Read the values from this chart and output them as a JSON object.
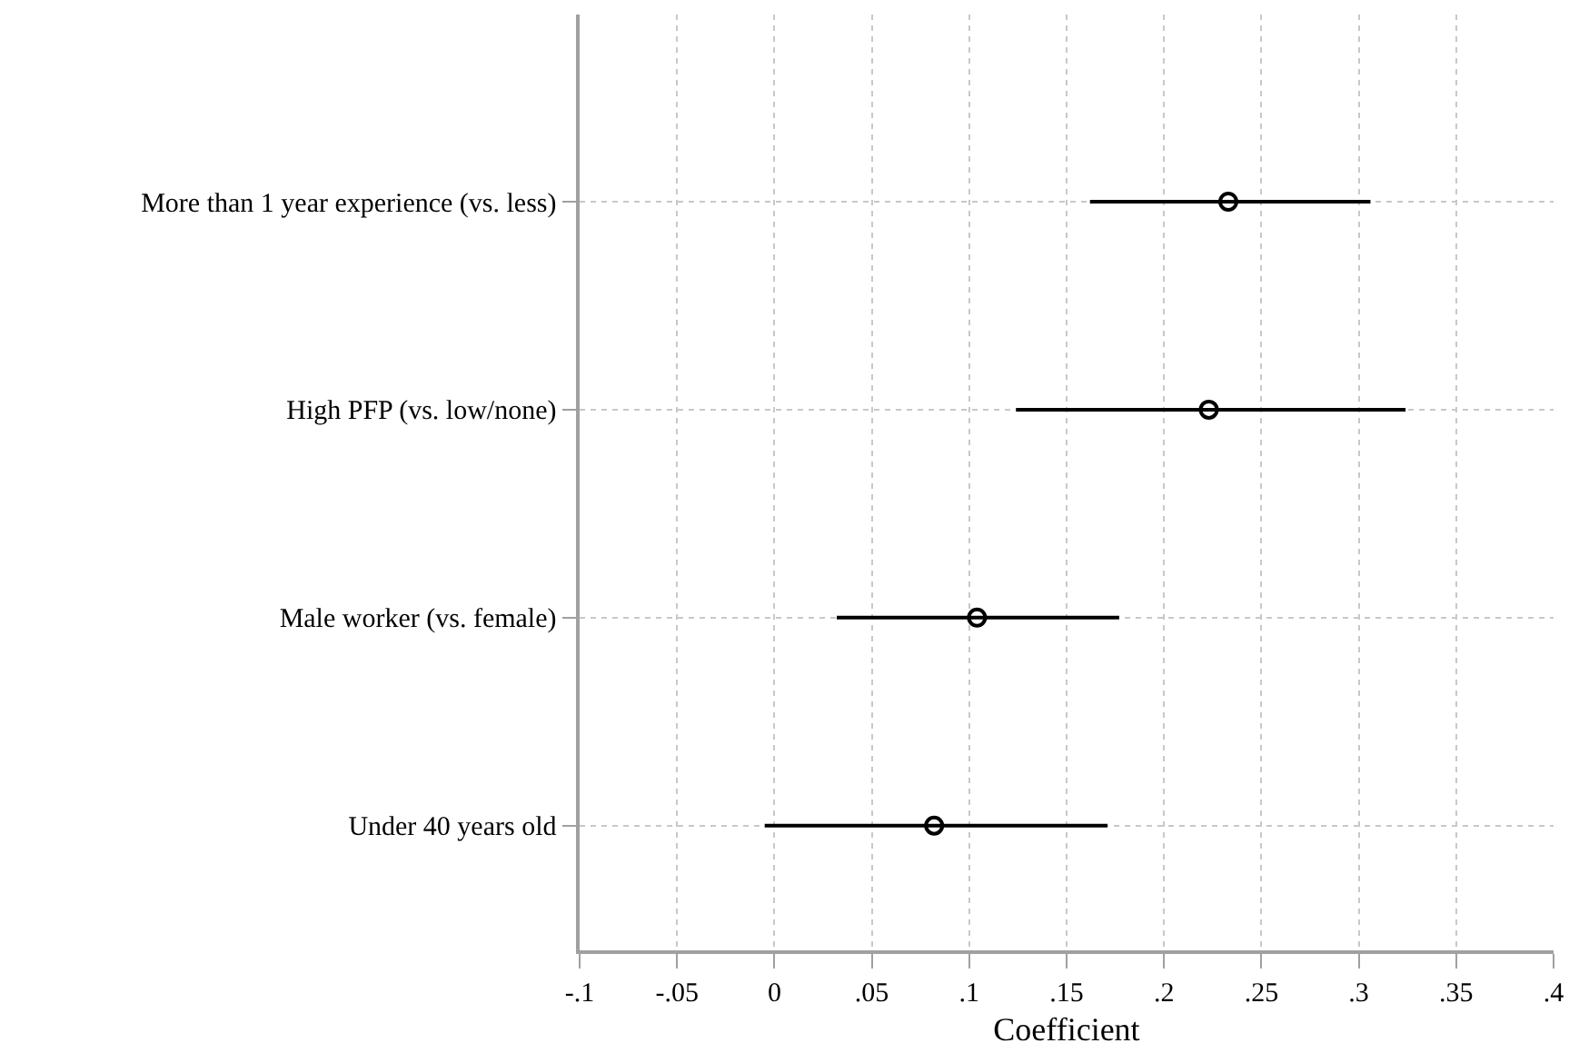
{
  "chart_data": {
    "type": "scatter",
    "xlabel": "Coefficient",
    "categories": [
      "More than 1 year experience (vs. less)",
      "High PFP (vs. low/none)",
      "Male worker (vs. female)",
      "Under 40 years old"
    ],
    "values": [
      0.233,
      0.223,
      0.104,
      0.082
    ],
    "errors": [
      [
        0.162,
        0.306
      ],
      [
        0.124,
        0.324
      ],
      [
        0.032,
        0.177
      ],
      [
        -0.005,
        0.171
      ]
    ],
    "color": "#000000",
    "marker": "circle",
    "orientation": "horizontal",
    "grid": true,
    "xlim": [
      -0.1,
      0.4
    ],
    "xticks": [
      {
        "value": -0.1,
        "label": "-.1"
      },
      {
        "value": -0.05,
        "label": "-.05"
      },
      0,
      {
        "value": 0.05,
        "label": ".05"
      },
      {
        "value": 0.1,
        "label": ".1"
      },
      {
        "value": 0.15,
        "label": ".15"
      },
      {
        "value": 0.2,
        "label": ".2"
      },
      {
        "value": 0.25,
        "label": ".25"
      },
      {
        "value": 0.3,
        "label": ".3"
      },
      {
        "value": 0.35,
        "label": ".35"
      },
      {
        "value": 0.4,
        "label": ".4"
      }
    ]
  }
}
